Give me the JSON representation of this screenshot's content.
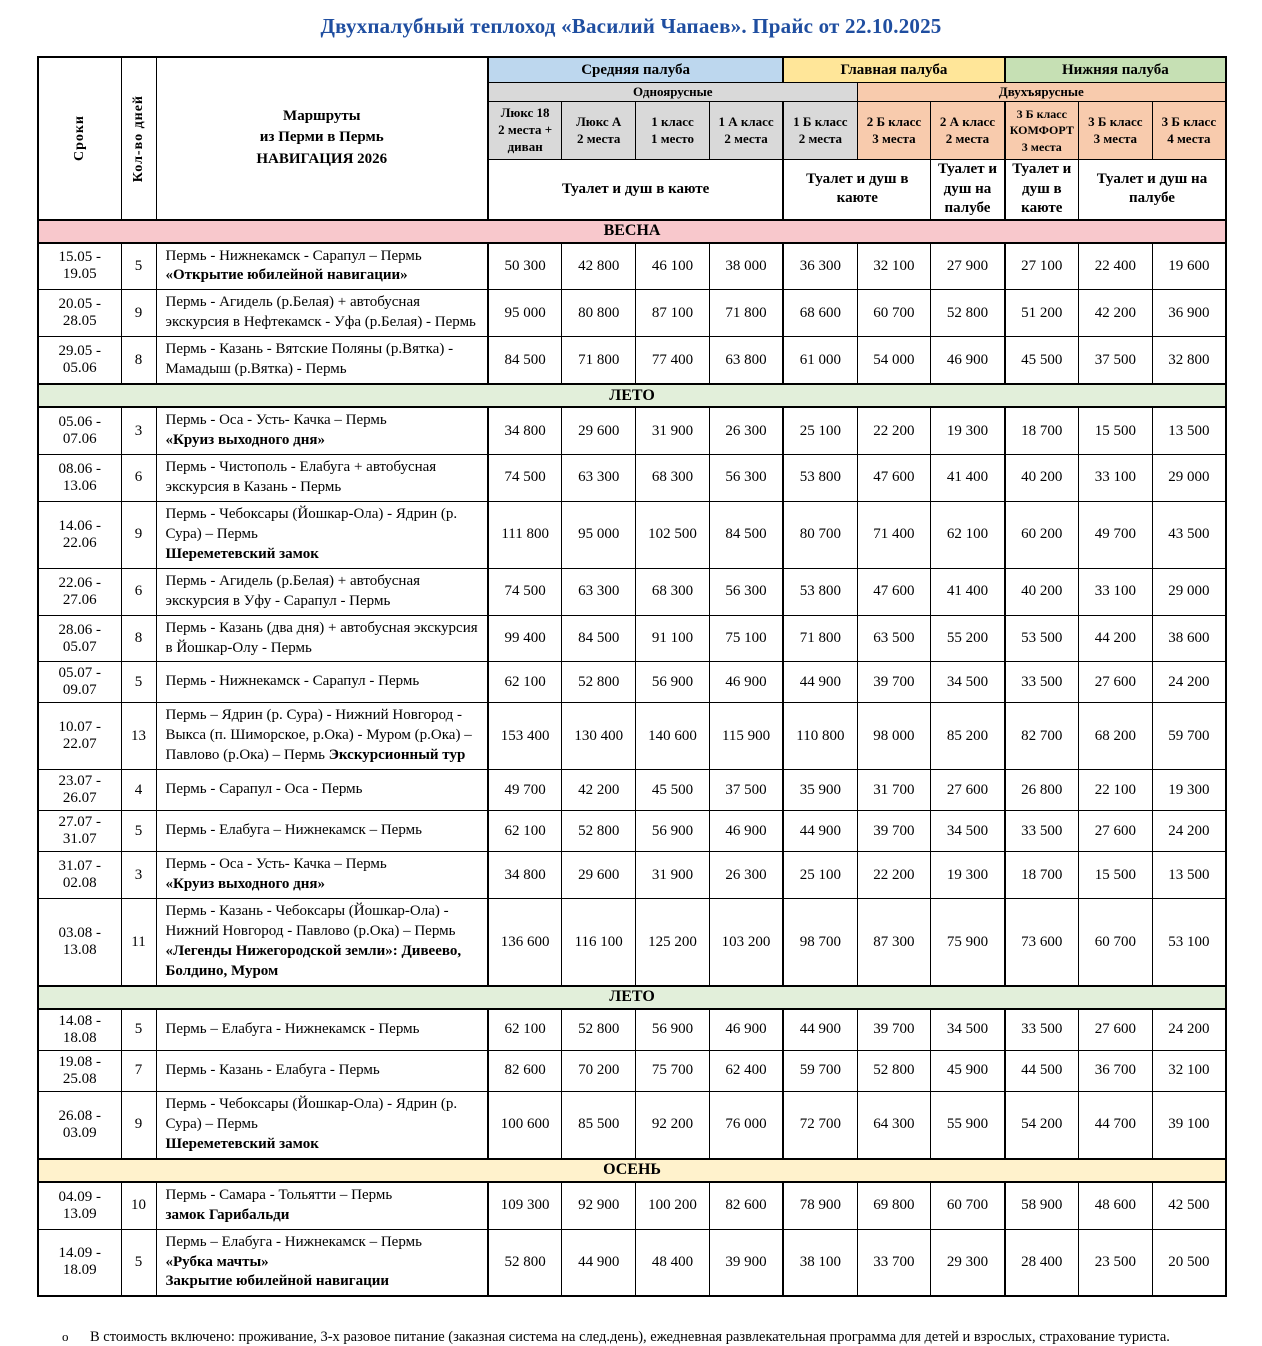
{
  "title": "Двухпалубный теплоход «Василий Чапаев». Прайс от 22.10.2025",
  "title_color": "#1f4ea0",
  "header": {
    "corner": {
      "dates_label": "Сроки",
      "days_label": "Кол-во дней",
      "routes_lines": [
        "Маршруты",
        "из Перми в Пермь",
        "НАВИГАЦИЯ  2026"
      ]
    },
    "decks": [
      {
        "label": "Средняя палуба",
        "color": "#BDD7EE",
        "span": 4
      },
      {
        "label": "Главная палуба",
        "color": "#FFE699",
        "span": 3
      },
      {
        "label": "Нижняя палуба",
        "color": "#C6E0B4",
        "span": 3
      }
    ],
    "tiers": [
      {
        "label": "Одноярусные",
        "color": "#D9D9D9",
        "span": 5
      },
      {
        "label": "Двухъярусные",
        "color": "#F8CBAD",
        "span": 5
      }
    ],
    "classes": [
      {
        "lines": [
          "Люкс 18",
          "2 места +",
          "диван"
        ],
        "color": "#D9D9D9",
        "small": false
      },
      {
        "lines": [
          "Люкс А",
          "2 места"
        ],
        "color": "#D9D9D9",
        "small": false
      },
      {
        "lines": [
          "1 класс",
          "1 место"
        ],
        "color": "#D9D9D9",
        "small": false
      },
      {
        "lines": [
          "1 А класс",
          "2  места"
        ],
        "color": "#D9D9D9",
        "small": false
      },
      {
        "lines": [
          "1 Б класс",
          "2 места"
        ],
        "color": "#D9D9D9",
        "small": false
      },
      {
        "lines": [
          "2 Б класс",
          "3 места"
        ],
        "color": "#F8CBAD",
        "small": false
      },
      {
        "lines": [
          "2 А класс",
          "2 места"
        ],
        "color": "#F8CBAD",
        "small": false
      },
      {
        "lines": [
          "3 Б класс",
          "КОМФОРТ",
          "3 места"
        ],
        "color": "#F8CBAD",
        "small": true
      },
      {
        "lines": [
          "3 Б класс",
          "3 места"
        ],
        "color": "#F8CBAD",
        "small": false
      },
      {
        "lines": [
          "3 Б класс",
          "4 места"
        ],
        "color": "#F8CBAD",
        "small": false
      }
    ],
    "amenities": [
      {
        "label": "Туалет и душ в каюте",
        "span": 4
      },
      {
        "label": "Туалет и душ в каюте",
        "span": 2
      },
      {
        "label": "Туалет и душ на палубе",
        "span": 1
      },
      {
        "label": "Туалет и душ в каюте",
        "span": 1
      },
      {
        "label": "Туалет и душ на палубе",
        "span": 2
      }
    ]
  },
  "season_colors": {
    "spring": "#F8C8CC",
    "summer": "#E2EFDA",
    "autumn": "#FFF2CC"
  },
  "rows": [
    {
      "type": "season",
      "label": "ВЕСНА",
      "color": "#F8C8CC"
    },
    {
      "type": "cruise",
      "dates": "15.05 - 19.05",
      "days": "5",
      "route": [
        {
          "text": "Пермь - Нижнекамск - Сарапул – Пермь"
        },
        {
          "text": "«Открытие юбилейной навигации»",
          "bold": true,
          "newline": true
        }
      ],
      "prices": [
        "50 300",
        "42 800",
        "46 100",
        "38 000",
        "36 300",
        "32 100",
        "27 900",
        "27 100",
        "22 400",
        "19 600"
      ]
    },
    {
      "type": "cruise",
      "dates": "20.05 - 28.05",
      "days": "9",
      "route": [
        {
          "text": "Пермь - Агидель (р.Белая) + автобусная экскурсия в Нефтекамск - Уфа (р.Белая) - Пермь"
        }
      ],
      "prices": [
        "95 000",
        "80 800",
        "87 100",
        "71 800",
        "68 600",
        "60 700",
        "52 800",
        "51 200",
        "42 200",
        "36 900"
      ]
    },
    {
      "type": "cruise",
      "dates": "29.05 - 05.06",
      "days": "8",
      "route": [
        {
          "text": "Пермь - Казань - Вятские Поляны (р.Вятка) - Мамадыш (р.Вятка) - Пермь"
        }
      ],
      "prices": [
        "84 500",
        "71 800",
        "77 400",
        "63 800",
        "61 000",
        "54 000",
        "46 900",
        "45 500",
        "37 500",
        "32 800"
      ]
    },
    {
      "type": "season",
      "label": "ЛЕТО",
      "color": "#E2EFDA"
    },
    {
      "type": "cruise",
      "dates": "05.06 - 07.06",
      "days": "3",
      "route": [
        {
          "text": "Пермь - Оса - Усть- Качка – Пермь"
        },
        {
          "text": "«Круиз выходного дня»",
          "bold": true,
          "newline": true
        }
      ],
      "prices": [
        "34 800",
        "29 600",
        "31 900",
        "26 300",
        "25 100",
        "22 200",
        "19 300",
        "18 700",
        "15 500",
        "13 500"
      ]
    },
    {
      "type": "cruise",
      "dates": "08.06 - 13.06",
      "days": "6",
      "route": [
        {
          "text": "Пермь - Чистополь - Елабуга + автобусная экскурсия в Казань - Пермь"
        }
      ],
      "prices": [
        "74 500",
        "63 300",
        "68 300",
        "56 300",
        "53 800",
        "47 600",
        "41 400",
        "40 200",
        "33 100",
        "29 000"
      ]
    },
    {
      "type": "cruise",
      "dates": "14.06 - 22.06",
      "days": "9",
      "route": [
        {
          "text": "Пермь - Чебоксары (Йошкар-Ола) - Ядрин (р. Сура) – Пермь"
        },
        {
          "text": "Шереметевский замок",
          "bold": true,
          "newline": true
        }
      ],
      "prices": [
        "111 800",
        "95 000",
        "102 500",
        "84 500",
        "80 700",
        "71 400",
        "62 100",
        "60 200",
        "49 700",
        "43 500"
      ]
    },
    {
      "type": "cruise",
      "dates": "22.06 - 27.06",
      "days": "6",
      "route": [
        {
          "text": "Пермь - Агидель (р.Белая) + автобусная экскурсия в Уфу - Сарапул - Пермь"
        }
      ],
      "prices": [
        "74 500",
        "63 300",
        "68 300",
        "56 300",
        "53 800",
        "47 600",
        "41 400",
        "40 200",
        "33 100",
        "29 000"
      ]
    },
    {
      "type": "cruise",
      "dates": "28.06 - 05.07",
      "days": "8",
      "route": [
        {
          "text": "Пермь - Казань (два дня) + автобусная экскурсия в Йошкар-Олу - Пермь"
        }
      ],
      "prices": [
        "99 400",
        "84 500",
        "91 100",
        "75 100",
        "71 800",
        "63 500",
        "55 200",
        "53 500",
        "44 200",
        "38 600"
      ]
    },
    {
      "type": "cruise",
      "dates": "05.07 - 09.07",
      "days": "5",
      "route": [
        {
          "text": "Пермь - Нижнекамск - Сарапул - Пермь"
        }
      ],
      "prices": [
        "62 100",
        "52 800",
        "56 900",
        "46 900",
        "44 900",
        "39 700",
        "34 500",
        "33 500",
        "27 600",
        "24 200"
      ]
    },
    {
      "type": "cruise",
      "dates": "10.07 - 22.07",
      "days": "13",
      "route": [
        {
          "text": "Пермь – Ядрин (р. Сура)  - Нижний Новгород - Выкса (п. Шиморское, р.Ока) - Муром (р.Ока) – Павлово (р.Ока) – Пермь "
        },
        {
          "text": "Экскурсионный тур",
          "bold": true
        }
      ],
      "prices": [
        "153 400",
        "130 400",
        "140 600",
        "115 900",
        "110 800",
        "98 000",
        "85 200",
        "82 700",
        "68 200",
        "59 700"
      ]
    },
    {
      "type": "cruise",
      "dates": "23.07 - 26.07",
      "days": "4",
      "route": [
        {
          "text": "Пермь - Сарапул - Оса - Пермь"
        }
      ],
      "prices": [
        "49 700",
        "42 200",
        "45 500",
        "37 500",
        "35 900",
        "31 700",
        "27 600",
        "26 800",
        "22 100",
        "19 300"
      ]
    },
    {
      "type": "cruise",
      "dates": "27.07 - 31.07",
      "days": "5",
      "route": [
        {
          "text": "Пермь - Елабуга – Нижнекамск – Пермь"
        }
      ],
      "prices": [
        "62 100",
        "52 800",
        "56 900",
        "46 900",
        "44 900",
        "39 700",
        "34 500",
        "33 500",
        "27 600",
        "24 200"
      ]
    },
    {
      "type": "cruise",
      "dates": "31.07 - 02.08",
      "days": "3",
      "route": [
        {
          "text": "Пермь - Оса - Усть- Качка – Пермь"
        },
        {
          "text": "«Круиз выходного дня»",
          "bold": true,
          "newline": true
        }
      ],
      "prices": [
        "34 800",
        "29 600",
        "31 900",
        "26 300",
        "25 100",
        "22 200",
        "19 300",
        "18 700",
        "15 500",
        "13 500"
      ]
    },
    {
      "type": "cruise",
      "dates": "03.08 - 13.08",
      "days": "11",
      "route": [
        {
          "text": "Пермь - Казань - Чебоксары (Йошкар-Ола) - Нижний Новгород - Павлово (р.Ока) – Пермь"
        },
        {
          "text": "«Легенды Нижегородской земли»: Дивеево, Болдино, Муром",
          "bold": true,
          "newline": true
        }
      ],
      "prices": [
        "136 600",
        "116 100",
        "125 200",
        "103 200",
        "98 700",
        "87 300",
        "75 900",
        "73 600",
        "60 700",
        "53 100"
      ]
    },
    {
      "type": "season",
      "label": "ЛЕТО",
      "color": "#E2EFDA"
    },
    {
      "type": "cruise",
      "dates": "14.08 - 18.08",
      "days": "5",
      "route": [
        {
          "text": "Пермь – Елабуга - Нижнекамск - Пермь"
        }
      ],
      "prices": [
        "62 100",
        "52 800",
        "56 900",
        "46 900",
        "44 900",
        "39 700",
        "34 500",
        "33 500",
        "27 600",
        "24 200"
      ]
    },
    {
      "type": "cruise",
      "dates": "19.08 - 25.08",
      "days": "7",
      "route": [
        {
          "text": "Пермь - Казань - Елабуга - Пермь"
        }
      ],
      "prices": [
        "82 600",
        "70 200",
        "75 700",
        "62 400",
        "59 700",
        "52 800",
        "45 900",
        "44 500",
        "36 700",
        "32 100"
      ]
    },
    {
      "type": "cruise",
      "dates": "26.08 - 03.09",
      "days": "9",
      "route": [
        {
          "text": "Пермь - Чебоксары (Йошкар-Ола) - Ядрин (р. Сура) – Пермь"
        },
        {
          "text": "Шереметевский замок",
          "bold": true,
          "newline": true
        }
      ],
      "prices": [
        "100 600",
        "85 500",
        "92 200",
        "76 000",
        "72 700",
        "64 300",
        "55 900",
        "54 200",
        "44 700",
        "39 100"
      ]
    },
    {
      "type": "season",
      "label": "ОСЕНЬ",
      "color": "#FFF2CC"
    },
    {
      "type": "cruise",
      "dates": "04.09 - 13.09",
      "days": "10",
      "route": [
        {
          "text": "Пермь - Самара - Тольятти – Пермь"
        },
        {
          "text": "замок Гарибальди",
          "bold": true,
          "newline": true
        }
      ],
      "prices": [
        "109 300",
        "92 900",
        "100 200",
        "82 600",
        "78 900",
        "69 800",
        "60 700",
        "58 900",
        "48 600",
        "42 500"
      ]
    },
    {
      "type": "cruise",
      "dates": "14.09 - 18.09",
      "days": "5",
      "route": [
        {
          "text": "Пермь – Елабуга - Нижнекамск – Пермь"
        },
        {
          "text": "«Рубка мачты»",
          "bold": true,
          "newline": true
        },
        {
          "text": "Закрытие юбилейной навигации",
          "bold": true,
          "newline": true
        }
      ],
      "prices": [
        "52 800",
        "44 900",
        "48 400",
        "39 900",
        "38 100",
        "33 700",
        "29 300",
        "28 400",
        "23 500",
        "20 500"
      ]
    }
  ],
  "footnote": {
    "bullet": "о",
    "text": "В стоимость включено: проживание, 3-х разовое питание (заказная система на след.день), ежедневная развлекательная программа для детей и взрослых, страхование туриста."
  }
}
